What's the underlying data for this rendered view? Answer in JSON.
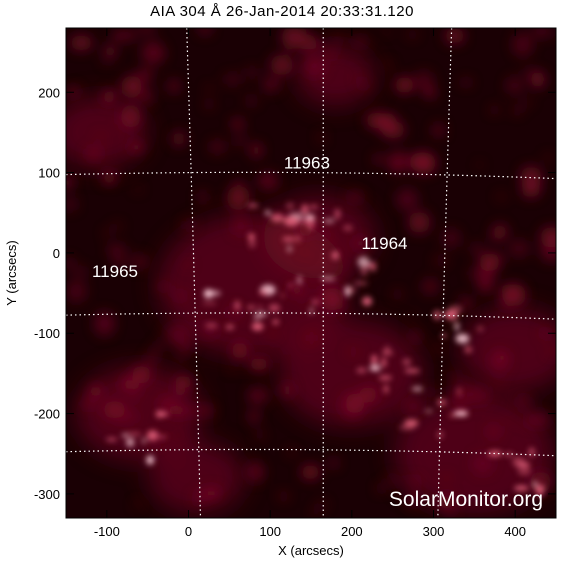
{
  "title": "AIA 304 Å 26-Jan-2014 20:33:31.120",
  "axes": {
    "xlabel": "X (arcsecs)",
    "ylabel": "Y (arcsecs)",
    "xlim": [
      -150,
      450
    ],
    "ylim": [
      -330,
      280
    ],
    "xticks": [
      -100,
      0,
      100,
      200,
      300,
      400
    ],
    "yticks": [
      -300,
      -200,
      -100,
      0,
      100,
      200
    ]
  },
  "active_regions": [
    {
      "label": "11963",
      "x": 145,
      "y": 105
    },
    {
      "label": "11964",
      "x": 240,
      "y": 5
    },
    {
      "label": "11965",
      "x": -90,
      "y": -30
    }
  ],
  "watermark": "SolarMonitor.org",
  "colors": {
    "background": "#ffffff",
    "image_dark": "#1a0004",
    "image_mid": "#7a0a28",
    "image_bright": "#e0607a",
    "image_highlight": "#ffd0dc",
    "grid": "#ffffff"
  }
}
